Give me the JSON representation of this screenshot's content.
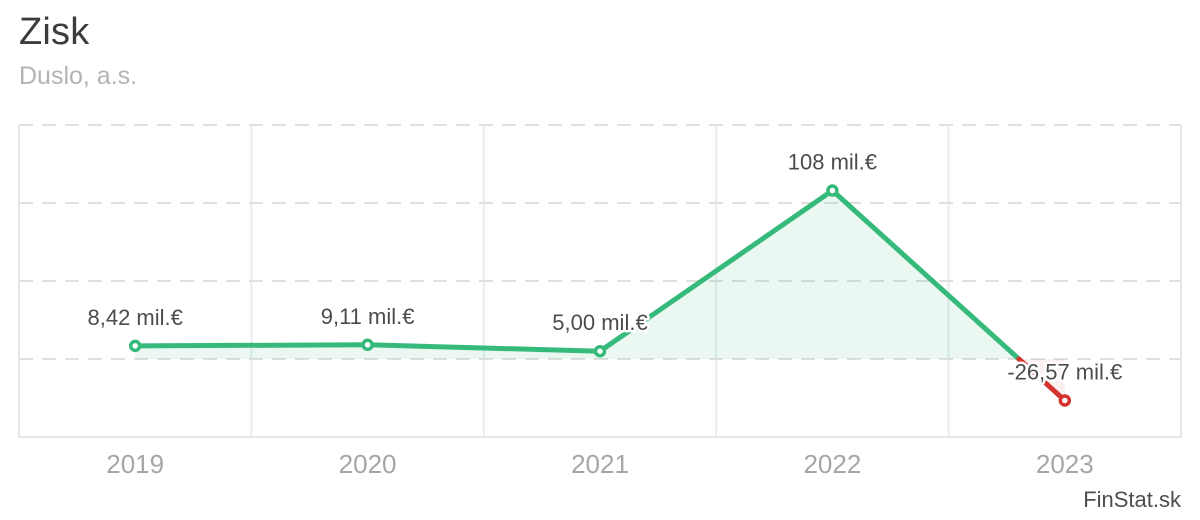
{
  "header": {
    "title": "Zisk",
    "subtitle": "Duslo, a.s."
  },
  "watermark": {
    "label": "FinStat.sk"
  },
  "chart_data": {
    "type": "area",
    "title": "Zisk",
    "subtitle": "Duslo, a.s.",
    "categories": [
      "2019",
      "2020",
      "2021",
      "2022",
      "2023"
    ],
    "series": [
      {
        "name": "Zisk",
        "values": [
          8.42,
          9.11,
          5.0,
          108,
          -26.57
        ]
      }
    ],
    "data_labels": [
      "8,42 mil.€",
      "9,11 mil.€",
      "5,00 mil.€",
      "108 mil.€",
      "-26,57 mil.€"
    ],
    "unit": "mil.€",
    "ylim": [
      -50,
      150
    ],
    "ytick_step": 50,
    "y_axis_labels_visible": false,
    "legend": "none",
    "grid": {
      "horizontal": "dashed",
      "vertical": "solid"
    },
    "colors": {
      "positive": "#36ba7c",
      "negative": "#d4332d",
      "positive_fill": "rgba(54, 186, 124, 0.10)",
      "negative_fill": "rgba(212, 51, 45, 0.08)",
      "grid_h": "#e0e0e0",
      "grid_v": "#e8ecef",
      "axis_border": "#e6e6e6",
      "data_label_color": "#4c4c4c",
      "xlabel_color": "#a6a6a6"
    }
  }
}
